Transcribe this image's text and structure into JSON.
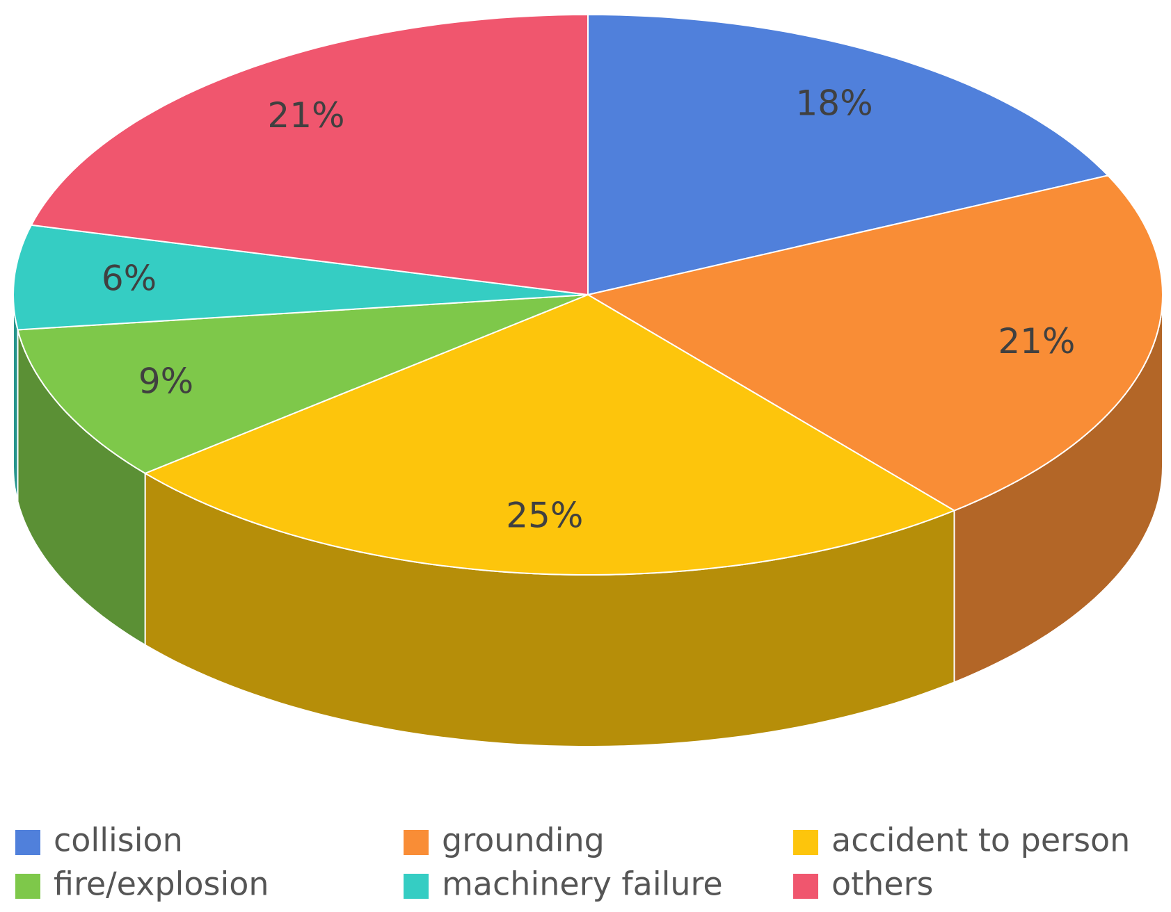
{
  "chart_data": {
    "type": "pie",
    "categories": [
      "collision",
      "grounding",
      "accident to person",
      "fire/explosion",
      "machinery failure",
      "others"
    ],
    "values": [
      18,
      21,
      25,
      9,
      6,
      21
    ],
    "value_labels": [
      "18%",
      "21%",
      "25%",
      "9%",
      "6%",
      "21%"
    ],
    "colors": [
      "#5080db",
      "#f98d36",
      "#fdc50c",
      "#7ec84a",
      "#35cdc3",
      "#f0566e"
    ],
    "legend": "bottom"
  }
}
